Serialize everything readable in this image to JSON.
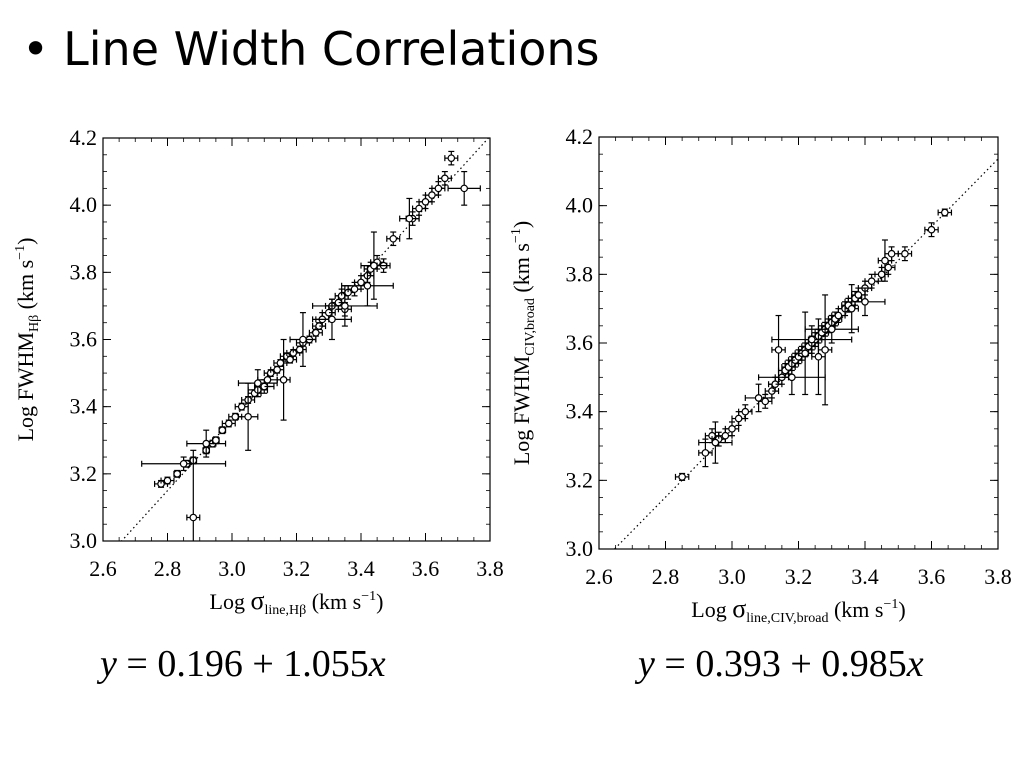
{
  "slide": {
    "bullet": "•",
    "title": "Line Width Correlations"
  },
  "equations": [
    {
      "y": "y",
      "eq": " = ",
      "intercept": "0.196",
      "plus": " + ",
      "slope": "1.055",
      "x": "x"
    },
    {
      "y": "y",
      "eq": " = ",
      "intercept": "0.393",
      "plus": " + ",
      "slope": "0.985",
      "x": "x"
    }
  ],
  "chart_data": [
    {
      "type": "scatter",
      "xlabel": {
        "prefix": "Log ",
        "sigma": "σ",
        "sub": "line,Hβ",
        "unit": " (km s",
        "exp": "−1",
        "close": ")"
      },
      "ylabel": {
        "prefix": "Log FWHM",
        "sub": "Hβ",
        "unit": " (km s",
        "exp": "−1",
        "close": ")"
      },
      "xlim": [
        2.6,
        3.8
      ],
      "ylim": [
        3.0,
        4.2
      ],
      "xticks": [
        "2.6",
        "2.8",
        "3.0",
        "3.2",
        "3.4",
        "3.6",
        "3.8"
      ],
      "yticks": [
        "3.0",
        "3.2",
        "3.4",
        "3.6",
        "3.8",
        "4.0",
        "4.2"
      ],
      "fit": {
        "intercept": 0.196,
        "slope": 1.055,
        "style": "dotted"
      },
      "points": [
        [
          2.78,
          3.17,
          0.02,
          0.01
        ],
        [
          2.8,
          3.18,
          0.02,
          0.01
        ],
        [
          2.83,
          3.2,
          0.01,
          0.01
        ],
        [
          2.86,
          3.23,
          0.01,
          0.01
        ],
        [
          2.88,
          3.24,
          0.01,
          0.01
        ],
        [
          2.92,
          3.27,
          0.01,
          0.01
        ],
        [
          2.94,
          3.29,
          0.01,
          0.01
        ],
        [
          2.95,
          3.3,
          0.01,
          0.01
        ],
        [
          2.97,
          3.33,
          0.01,
          0.01
        ],
        [
          2.99,
          3.35,
          0.02,
          0.01
        ],
        [
          3.01,
          3.37,
          0.02,
          0.01
        ],
        [
          3.03,
          3.4,
          0.02,
          0.01
        ],
        [
          3.05,
          3.42,
          0.02,
          0.01
        ],
        [
          3.07,
          3.44,
          0.02,
          0.01
        ],
        [
          3.08,
          3.45,
          0.03,
          0.02
        ],
        [
          3.1,
          3.46,
          0.03,
          0.02
        ],
        [
          3.11,
          3.48,
          0.03,
          0.02
        ],
        [
          3.12,
          3.5,
          0.02,
          0.01
        ],
        [
          3.14,
          3.51,
          0.02,
          0.01
        ],
        [
          3.15,
          3.53,
          0.02,
          0.01
        ],
        [
          3.17,
          3.55,
          0.02,
          0.01
        ],
        [
          3.18,
          3.54,
          0.02,
          0.01
        ],
        [
          3.19,
          3.56,
          0.02,
          0.01
        ],
        [
          3.21,
          3.57,
          0.02,
          0.01
        ],
        [
          3.22,
          3.59,
          0.02,
          0.01
        ],
        [
          3.24,
          3.6,
          0.02,
          0.01
        ],
        [
          3.26,
          3.62,
          0.02,
          0.01
        ],
        [
          3.27,
          3.64,
          0.02,
          0.01
        ],
        [
          3.28,
          3.66,
          0.02,
          0.02
        ],
        [
          3.3,
          3.68,
          0.02,
          0.02
        ],
        [
          3.31,
          3.7,
          0.02,
          0.02
        ],
        [
          3.33,
          3.71,
          0.02,
          0.02
        ],
        [
          3.34,
          3.73,
          0.02,
          0.02
        ],
        [
          3.35,
          3.69,
          0.02,
          0.02
        ],
        [
          3.36,
          3.74,
          0.02,
          0.02
        ],
        [
          3.38,
          3.75,
          0.02,
          0.02
        ],
        [
          3.4,
          3.77,
          0.02,
          0.02
        ],
        [
          3.42,
          3.79,
          0.02,
          0.02
        ],
        [
          3.43,
          3.81,
          0.02,
          0.02
        ],
        [
          3.45,
          3.83,
          0.02,
          0.02
        ],
        [
          3.47,
          3.82,
          0.02,
          0.02
        ],
        [
          3.5,
          3.9,
          0.02,
          0.02
        ],
        [
          3.56,
          3.96,
          0.02,
          0.02
        ],
        [
          3.58,
          3.99,
          0.02,
          0.02
        ],
        [
          3.6,
          4.01,
          0.02,
          0.02
        ],
        [
          3.62,
          4.03,
          0.02,
          0.02
        ],
        [
          3.64,
          4.05,
          0.02,
          0.02
        ],
        [
          3.66,
          4.08,
          0.02,
          0.02
        ],
        [
          3.68,
          4.14,
          0.02,
          0.02
        ],
        [
          3.72,
          4.05,
          0.05,
          0.05
        ]
      ],
      "outliers": [
        [
          2.85,
          3.23,
          0.13,
          0.02
        ],
        [
          2.88,
          3.07,
          0.02,
          0.2
        ],
        [
          2.92,
          3.29,
          0.06,
          0.04
        ],
        [
          3.05,
          3.37,
          0.03,
          0.1
        ],
        [
          3.08,
          3.47,
          0.06,
          0.04
        ],
        [
          3.16,
          3.48,
          0.02,
          0.12
        ],
        [
          3.22,
          3.6,
          0.04,
          0.08
        ],
        [
          3.31,
          3.66,
          0.06,
          0.06
        ],
        [
          3.35,
          3.7,
          0.1,
          0.06
        ],
        [
          3.42,
          3.76,
          0.08,
          0.06
        ],
        [
          3.44,
          3.82,
          0.04,
          0.1
        ],
        [
          3.55,
          3.96,
          0.03,
          0.06
        ]
      ]
    },
    {
      "type": "scatter",
      "xlabel": {
        "prefix": "Log ",
        "sigma": "σ",
        "sub": "line,CIV,broad",
        "unit": " (km s",
        "exp": "−1",
        "close": ")"
      },
      "ylabel": {
        "prefix": "Log FWHM",
        "sub": "CIV,broad",
        "unit": " (km s",
        "exp": "−1",
        "close": ")"
      },
      "xlim": [
        2.6,
        3.8
      ],
      "ylim": [
        3.0,
        4.2
      ],
      "xticks": [
        "2.6",
        "2.8",
        "3.0",
        "3.2",
        "3.4",
        "3.6",
        "3.8"
      ],
      "yticks": [
        "3.0",
        "3.2",
        "3.4",
        "3.6",
        "3.8",
        "4.0",
        "4.2"
      ],
      "fit": {
        "intercept": 0.393,
        "slope": 0.985,
        "style": "dotted"
      },
      "points": [
        [
          2.85,
          3.21,
          0.02,
          0.01
        ],
        [
          2.92,
          3.28,
          0.02,
          0.04
        ],
        [
          2.94,
          3.33,
          0.02,
          0.02
        ],
        [
          2.96,
          3.32,
          0.02,
          0.02
        ],
        [
          2.98,
          3.33,
          0.02,
          0.02
        ],
        [
          3.0,
          3.35,
          0.02,
          0.02
        ],
        [
          3.02,
          3.38,
          0.02,
          0.02
        ],
        [
          3.04,
          3.4,
          0.02,
          0.02
        ],
        [
          3.1,
          3.43,
          0.02,
          0.02
        ],
        [
          3.12,
          3.46,
          0.02,
          0.02
        ],
        [
          3.13,
          3.48,
          0.02,
          0.02
        ],
        [
          3.15,
          3.5,
          0.02,
          0.02
        ],
        [
          3.16,
          3.52,
          0.02,
          0.02
        ],
        [
          3.17,
          3.53,
          0.02,
          0.02
        ],
        [
          3.18,
          3.54,
          0.02,
          0.02
        ],
        [
          3.19,
          3.55,
          0.02,
          0.02
        ],
        [
          3.2,
          3.56,
          0.02,
          0.02
        ],
        [
          3.21,
          3.57,
          0.02,
          0.02
        ],
        [
          3.22,
          3.58,
          0.02,
          0.02
        ],
        [
          3.23,
          3.59,
          0.02,
          0.02
        ],
        [
          3.24,
          3.6,
          0.02,
          0.02
        ],
        [
          3.25,
          3.61,
          0.02,
          0.02
        ],
        [
          3.26,
          3.62,
          0.02,
          0.02
        ],
        [
          3.27,
          3.63,
          0.02,
          0.02
        ],
        [
          3.28,
          3.64,
          0.02,
          0.02
        ],
        [
          3.29,
          3.65,
          0.02,
          0.02
        ],
        [
          3.3,
          3.66,
          0.02,
          0.02
        ],
        [
          3.31,
          3.67,
          0.02,
          0.02
        ],
        [
          3.32,
          3.68,
          0.02,
          0.02
        ],
        [
          3.34,
          3.7,
          0.02,
          0.02
        ],
        [
          3.35,
          3.71,
          0.02,
          0.02
        ],
        [
          3.37,
          3.73,
          0.02,
          0.02
        ],
        [
          3.38,
          3.74,
          0.02,
          0.02
        ],
        [
          3.4,
          3.76,
          0.02,
          0.02
        ],
        [
          3.42,
          3.78,
          0.02,
          0.02
        ],
        [
          3.45,
          3.8,
          0.02,
          0.02
        ],
        [
          3.47,
          3.82,
          0.02,
          0.02
        ],
        [
          3.48,
          3.86,
          0.02,
          0.02
        ],
        [
          3.52,
          3.86,
          0.02,
          0.02
        ],
        [
          3.6,
          3.93,
          0.02,
          0.02
        ],
        [
          3.64,
          3.98,
          0.02,
          0.01
        ]
      ],
      "outliers": [
        [
          2.95,
          3.31,
          0.05,
          0.06
        ],
        [
          3.08,
          3.44,
          0.04,
          0.04
        ],
        [
          3.14,
          3.58,
          0.02,
          0.1
        ],
        [
          3.18,
          3.5,
          0.1,
          0.05
        ],
        [
          3.22,
          3.57,
          0.02,
          0.12
        ],
        [
          3.24,
          3.61,
          0.12,
          0.04
        ],
        [
          3.28,
          3.58,
          0.02,
          0.16
        ],
        [
          3.3,
          3.64,
          0.08,
          0.04
        ],
        [
          3.26,
          3.56,
          0.02,
          0.11
        ],
        [
          3.36,
          3.7,
          0.02,
          0.07
        ],
        [
          3.4,
          3.72,
          0.06,
          0.04
        ],
        [
          3.46,
          3.84,
          0.02,
          0.06
        ]
      ]
    }
  ]
}
